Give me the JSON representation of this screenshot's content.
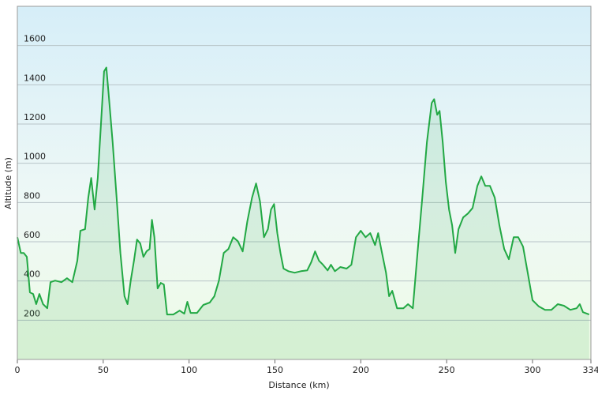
{
  "chart_data": {
    "type": "area",
    "xlabel": "Distance  (km)",
    "ylabel": "Altitude (m)",
    "x": [
      0,
      2,
      3.7,
      5.5,
      7.3,
      9.2,
      11,
      12.8,
      15,
      17.4,
      19.3,
      22,
      25.7,
      28.9,
      32,
      34.9,
      36.7,
      39.4,
      41.3,
      43,
      45,
      46.8,
      48.6,
      50.5,
      51.8,
      53.2,
      55.5,
      57.8,
      60,
      62.4,
      64.2,
      66,
      67.9,
      69.7,
      71.6,
      73.4,
      75.2,
      77,
      78.4,
      79.8,
      81.7,
      83.5,
      85.3,
      87.2,
      90.8,
      94.5,
      97.2,
      99,
      100.9,
      104.6,
      108.3,
      112,
      114.7,
      117.4,
      120.2,
      122.9,
      125.7,
      128.4,
      131.2,
      133.9,
      136.7,
      139,
      141.3,
      143.6,
      145.9,
      147.7,
      149.5,
      151.4,
      153.2,
      155,
      157.8,
      161.5,
      165.1,
      168.8,
      171.1,
      173.4,
      175.7,
      178,
      180.7,
      182.6,
      184.9,
      188.1,
      191.7,
      194.5,
      197.2,
      200,
      202.8,
      205.5,
      208.3,
      210.1,
      211.9,
      214.7,
      216.5,
      218.3,
      221.1,
      224.8,
      227.5,
      230.3,
      233,
      235.8,
      238.5,
      241.3,
      242.7,
      244.5,
      245.9,
      247.7,
      249.5,
      251.4,
      253.2,
      255,
      256.9,
      259.6,
      262.4,
      265.1,
      267.9,
      270.2,
      272.5,
      275.2,
      278,
      280.7,
      283.5,
      286.2,
      289,
      291.7,
      294.5,
      297.2,
      300,
      303.7,
      307.3,
      311,
      314.7,
      318.3,
      322,
      325.7,
      327.5,
      329.4,
      333
    ],
    "series": [
      {
        "name": "Altitude",
        "color": "#22a844",
        "values": [
          623,
          543,
          543,
          523,
          342,
          334,
          282,
          334,
          282,
          261,
          394,
          402,
          394,
          414,
          394,
          503,
          656,
          664,
          825,
          925,
          764,
          925,
          1187,
          1468,
          1488,
          1348,
          1106,
          825,
          543,
          322,
          282,
          402,
          503,
          611,
          591,
          523,
          551,
          563,
          712,
          623,
          362,
          390,
          382,
          229,
          229,
          249,
          233,
          294,
          237,
          237,
          278,
          290,
          322,
          402,
          543,
          563,
          623,
          603,
          551,
          704,
          825,
          897,
          805,
          623,
          664,
          764,
          792,
          644,
          543,
          463,
          450,
          442,
          450,
          454,
          495,
          551,
          503,
          483,
          454,
          483,
          450,
          471,
          463,
          483,
          623,
          656,
          623,
          644,
          583,
          644,
          563,
          442,
          322,
          350,
          261,
          261,
          282,
          261,
          543,
          825,
          1106,
          1307,
          1327,
          1247,
          1267,
          1106,
          905,
          764,
          684,
          543,
          664,
          724,
          744,
          772,
          885,
          933,
          885,
          885,
          825,
          684,
          563,
          511,
          623,
          623,
          575,
          442,
          302,
          270,
          253,
          253,
          282,
          274,
          253,
          261,
          282,
          241,
          229
        ]
      }
    ],
    "xlim": [
      0,
      334
    ],
    "xticks": [
      0,
      50,
      100,
      150,
      200,
      250,
      300,
      334
    ],
    "ylim": [
      0,
      1800
    ],
    "yticks": [
      200,
      400,
      600,
      800,
      1000,
      1200,
      1400,
      1600
    ],
    "grid": true
  }
}
